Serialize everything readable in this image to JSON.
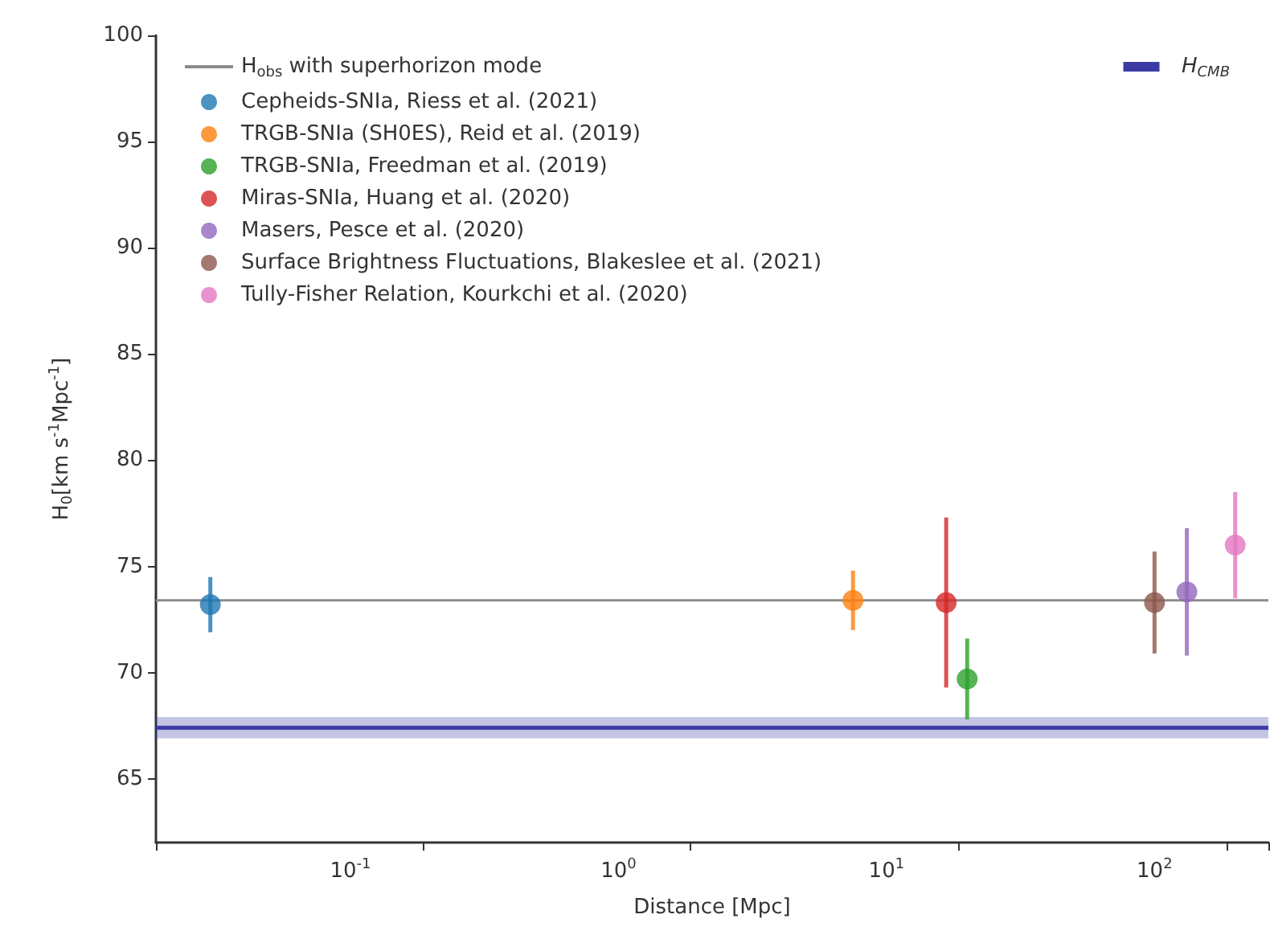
{
  "chart_data": {
    "type": "scatter",
    "xlabel": "Distance [Mpc]",
    "ylabel": "H$_{0}$[km s$^{-1}$Mpc$^{-1}$]",
    "log": "x",
    "xlim": [
      0.0188,
      266
    ],
    "ylim": [
      62,
      100
    ],
    "xticks": [
      {
        "value": 0.1,
        "label": "10$^{-1}$"
      },
      {
        "value": 1,
        "label": "10$^{0}$"
      },
      {
        "value": 10,
        "label": "10$^{1}$"
      },
      {
        "value": 100,
        "label": "10$^{2}$"
      }
    ],
    "yticks": [
      65,
      70,
      75,
      80,
      85,
      90,
      95,
      100
    ],
    "marker": "circle",
    "legend": "top left",
    "series": [
      {
        "name": "H$_{obs}$ with superhorizon mode",
        "type": "line",
        "marker": "none",
        "color": "#8c8c8c",
        "x": [
          0.0188,
          266
        ],
        "values": [
          73.4,
          73.4
        ]
      },
      {
        "name": "H$_{CMB}$",
        "type": "line",
        "marker": "none",
        "color": "#3b3ba6",
        "x": [
          0.0188,
          266
        ],
        "values": [
          67.4,
          67.4
        ],
        "lower": [
          66.9,
          66.9
        ],
        "upper": [
          67.9,
          67.9
        ]
      },
      {
        "name": "Cepheids-SNIa, Riess et al. (2021)",
        "color": "#1f77b4",
        "x": [
          0.03
        ],
        "values": [
          73.2
        ],
        "errors": [
          1.3
        ]
      },
      {
        "name": "TRGB-SNIa (SH0ES), Reid et al. (2019)",
        "color": "#ff7f0e",
        "x": [
          7.5
        ],
        "values": [
          73.4
        ],
        "errors": [
          1.4
        ]
      },
      {
        "name": "TRGB-SNIa, Freedman et al. (2019)",
        "color": "#2ca02c",
        "x": [
          20
        ],
        "values": [
          69.7
        ],
        "errors": [
          1.9
        ]
      },
      {
        "name": "Miras-SNIa, Huang et al. (2020)",
        "color": "#d62728",
        "x": [
          16.7
        ],
        "values": [
          73.3
        ],
        "errors": [
          4.0
        ]
      },
      {
        "name": "Masers, Pesce et al. (2020)",
        "color": "#9467bd",
        "x": [
          132
        ],
        "values": [
          73.8
        ],
        "errors": [
          3.0
        ]
      },
      {
        "name": "Surface Brightness Fluctuations, Blakeslee et al. (2021)",
        "color": "#8c564b",
        "x": [
          100
        ],
        "values": [
          73.3
        ],
        "errors": [
          2.4
        ]
      },
      {
        "name": "Tully-Fisher Relation, Kourkchi et al. (2020)",
        "color": "#e377c2",
        "x": [
          200
        ],
        "values": [
          76.0
        ],
        "errors": [
          2.5
        ]
      }
    ]
  }
}
